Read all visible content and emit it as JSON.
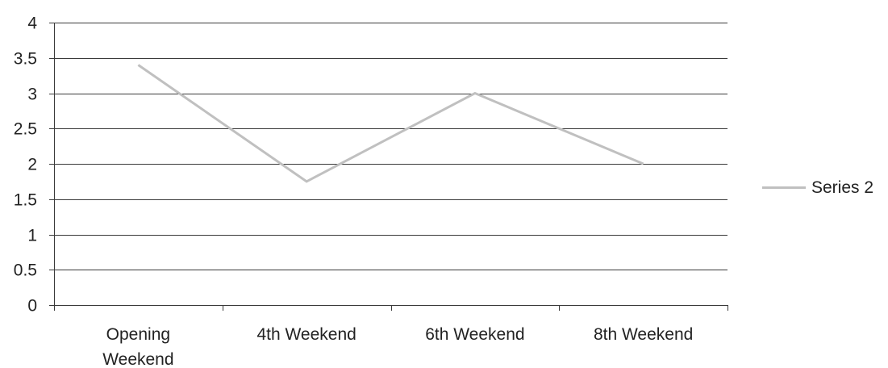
{
  "chart_data": {
    "type": "line",
    "title": "",
    "xlabel": "",
    "ylabel": "",
    "categories": [
      [
        "Opening",
        "Weekend"
      ],
      [
        "4th Weekend"
      ],
      [
        "6th Weekend"
      ],
      [
        "8th Weekend"
      ]
    ],
    "series": [
      {
        "name": "Series 2",
        "values": [
          3.4,
          1.75,
          3.0,
          2.0
        ],
        "color": "#c0c0c0"
      }
    ],
    "ylim": [
      0,
      4
    ],
    "yticks": [
      "0",
      "0.5",
      "1",
      "1.5",
      "2",
      "2.5",
      "3",
      "3.5",
      "4"
    ],
    "grid": true,
    "legend_position": "right",
    "colors": {
      "gridline": "#3a3a3a",
      "axis": "#3a3a3a",
      "text": "#222222"
    }
  }
}
